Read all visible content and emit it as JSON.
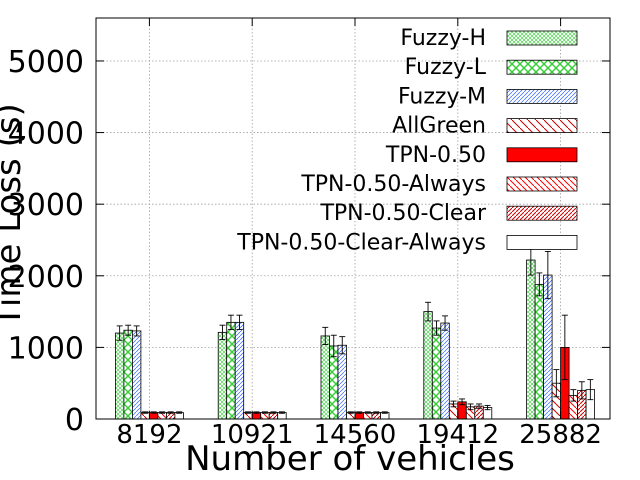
{
  "chart_data": {
    "type": "bar",
    "title": "",
    "xlabel": "Number of vehicles",
    "ylabel": "Time Loss (s)",
    "ylim": [
      0,
      5600
    ],
    "yticks": [
      0,
      1000,
      2000,
      3000,
      4000,
      5000
    ],
    "categories": [
      "8192",
      "10921",
      "14560",
      "19412",
      "25882"
    ],
    "grid": true,
    "legend_position": "top-right",
    "series": [
      {
        "name": "Fuzzy-H",
        "values": [
          1200,
          1210,
          1160,
          1500,
          2220
        ],
        "errors": [
          100,
          100,
          120,
          130,
          210
        ],
        "color": "#33cc33",
        "pattern": "hatch-fine-green"
      },
      {
        "name": "Fuzzy-L",
        "values": [
          1240,
          1350,
          1020,
          1270,
          1880
        ],
        "errors": [
          70,
          100,
          150,
          100,
          160
        ],
        "color": "#33cc33",
        "pattern": "crosshatch-green"
      },
      {
        "name": "Fuzzy-M",
        "values": [
          1230,
          1350,
          1030,
          1340,
          2010
        ],
        "errors": [
          70,
          100,
          120,
          100,
          330
        ],
        "color": "#3366ff",
        "pattern": "diag-blue"
      },
      {
        "name": "AllGreen",
        "values": [
          90,
          90,
          90,
          210,
          500
        ],
        "errors": [
          10,
          10,
          10,
          40,
          190
        ],
        "color": "#cc0000",
        "pattern": "diag-red-sparse"
      },
      {
        "name": "TPN-0.50",
        "values": [
          90,
          90,
          90,
          240,
          1000
        ],
        "errors": [
          10,
          10,
          10,
          40,
          450
        ],
        "color": "#ff0000",
        "pattern": "solid-red"
      },
      {
        "name": "TPN-0.50-Always",
        "values": [
          90,
          90,
          90,
          170,
          330
        ],
        "errors": [
          10,
          10,
          10,
          40,
          80
        ],
        "color": "#cc0000",
        "pattern": "diag-red"
      },
      {
        "name": "TPN-0.50-Clear",
        "values": [
          90,
          90,
          90,
          180,
          400
        ],
        "errors": [
          10,
          10,
          10,
          30,
          120
        ],
        "color": "#cc0000",
        "pattern": "diag-red-dense"
      },
      {
        "name": "TPN-0.50-Clear-Always",
        "values": [
          90,
          90,
          90,
          160,
          410
        ],
        "errors": [
          10,
          10,
          10,
          30,
          140
        ],
        "color": "#000000",
        "pattern": "empty"
      }
    ]
  }
}
